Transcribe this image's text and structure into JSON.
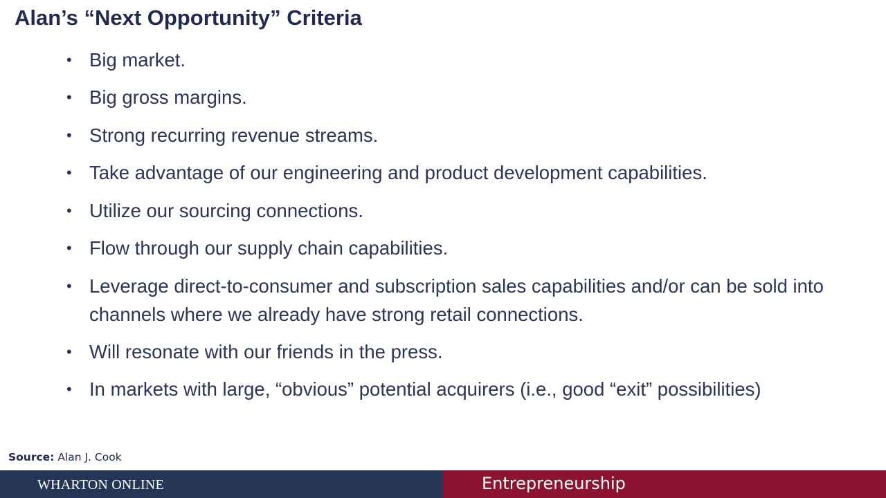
{
  "slide": {
    "title": "Alan’s “Next Opportunity” Criteria",
    "bullet_symbol": "•",
    "bullets": [
      "Big market.",
      "Big gross margins.",
      "Strong recurring revenue streams.",
      "Take advantage of our engineering and product development capabilities.",
      "Utilize our sourcing connections.",
      "Flow through our supply chain capabilities.",
      "Leverage direct-to-consumer and subscription sales capabilities and/or can be sold into channels where we already have strong retail connections.",
      "Will resonate with our friends in the press.",
      "In markets with large, “obvious” potential acquirers (i.e., good “exit” possibilities)"
    ],
    "source_label": "Source:",
    "source_value": "Alan J. Cook"
  },
  "footer": {
    "brand": "WHARTON ONLINE",
    "course": "Entrepreneurship",
    "left_color": "#253556",
    "right_color": "#8c1430"
  },
  "colors": {
    "title": "#1f2a4d",
    "body_text": "#2b3459"
  }
}
